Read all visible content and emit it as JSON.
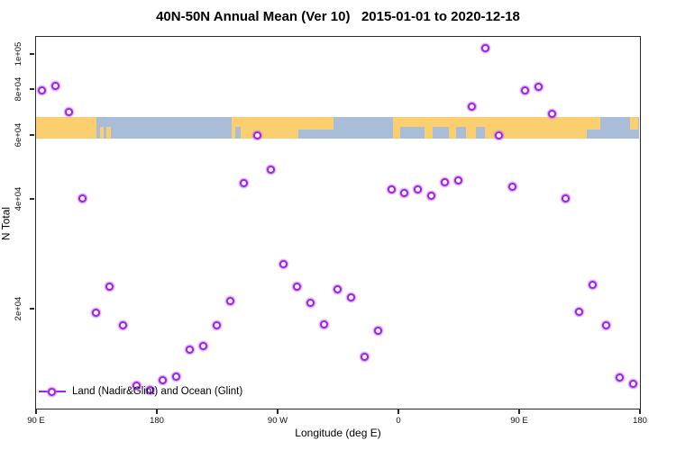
{
  "title": "40N-50N Annual Mean (Ver 10)   2015-01-01 to 2020-12-18",
  "legend": {
    "label": "Land (Nadir&Glint) and Ocean (Glint)"
  },
  "colors": {
    "marker": "#a322ee",
    "marker_halo": "#ba6af5",
    "land": "#fbce6f",
    "ocean": "#a9bdd8",
    "axis": "#2b2b2b"
  },
  "chart_data": {
    "type": "scatter",
    "title": "40N-50N Annual Mean (Ver 10)   2015-01-01 to 2020-12-18",
    "xlabel": "Longitude (deg E)",
    "ylabel": "N Total",
    "y_scale": "log10",
    "ylim_approx": [
      10500,
      115000
    ],
    "grid": false,
    "legend_position": "bottom-left-inside",
    "x_axis": {
      "description": "longitude axis starting at 90E and wrapping eastward 450 degrees",
      "span_deg": 450,
      "tick_deg_from_start": [
        0,
        90,
        180,
        270,
        360,
        450
      ],
      "tick_labels": [
        "90 E",
        "180",
        "90 W",
        "0",
        "90 E",
        "180"
      ]
    },
    "y_axis": {
      "tick_values": [
        20000,
        40000,
        60000,
        80000,
        100000
      ],
      "tick_labels": [
        "2e+04",
        "4e+04",
        "6e+04",
        "8e+04",
        "1e+05"
      ]
    },
    "series": [
      {
        "name": "Land (Nadir&Glint) and Ocean (Glint)",
        "marker": "open-circle",
        "marker_color": "#a322ee",
        "points": [
          {
            "deg": 5,
            "value": 79000
          },
          {
            "deg": 15,
            "value": 81500
          },
          {
            "deg": 25,
            "value": 69000
          },
          {
            "deg": 35,
            "value": 40000
          },
          {
            "deg": 45,
            "value": 19500
          },
          {
            "deg": 55,
            "value": 23000
          },
          {
            "deg": 65,
            "value": 18000
          },
          {
            "deg": 75,
            "value": 12300
          },
          {
            "deg": 85,
            "value": 11900
          },
          {
            "deg": 95,
            "value": 12700
          },
          {
            "deg": 105,
            "value": 13000
          },
          {
            "deg": 115,
            "value": 15400
          },
          {
            "deg": 125,
            "value": 15800
          },
          {
            "deg": 135,
            "value": 18000
          },
          {
            "deg": 145,
            "value": 21000
          },
          {
            "deg": 155,
            "value": 44000
          },
          {
            "deg": 165,
            "value": 59500
          },
          {
            "deg": 175,
            "value": 48000
          },
          {
            "deg": 185,
            "value": 26400
          },
          {
            "deg": 195,
            "value": 23000
          },
          {
            "deg": 205,
            "value": 20700
          },
          {
            "deg": 215,
            "value": 18100
          },
          {
            "deg": 225,
            "value": 22500
          },
          {
            "deg": 235,
            "value": 21400
          },
          {
            "deg": 245,
            "value": 14700
          },
          {
            "deg": 255,
            "value": 17400
          },
          {
            "deg": 265,
            "value": 42400
          },
          {
            "deg": 275,
            "value": 41400
          },
          {
            "deg": 285,
            "value": 42400
          },
          {
            "deg": 295,
            "value": 40700
          },
          {
            "deg": 305,
            "value": 44300
          },
          {
            "deg": 315,
            "value": 44900
          },
          {
            "deg": 325,
            "value": 71500
          },
          {
            "deg": 335,
            "value": 103500
          },
          {
            "deg": 345,
            "value": 59500
          },
          {
            "deg": 355,
            "value": 43000
          },
          {
            "deg": 365,
            "value": 79000
          },
          {
            "deg": 375,
            "value": 81000
          },
          {
            "deg": 385,
            "value": 68500
          },
          {
            "deg": 395,
            "value": 40000
          },
          {
            "deg": 405,
            "value": 19600
          },
          {
            "deg": 415,
            "value": 23200
          },
          {
            "deg": 425,
            "value": 18000
          },
          {
            "deg": 435,
            "value": 12900
          },
          {
            "deg": 445,
            "value": 12400
          }
        ]
      }
    ],
    "map_band": {
      "description": "40N-50N latitude strip of world map drawn across plot",
      "value_top": 66800,
      "value_bottom": 58300,
      "land_color": "#fbce6f",
      "ocean_color": "#a9bdd8",
      "land_segments": [
        {
          "name": "asia-east-of-90e",
          "from_deg": 0,
          "to_deg": 45,
          "part": "full"
        },
        {
          "name": "japan-islands-1",
          "from_deg": 48,
          "to_deg": 51,
          "part": "bottom"
        },
        {
          "name": "japan-islands-2",
          "from_deg": 53,
          "to_deg": 56,
          "part": "bottom"
        },
        {
          "name": "north-america",
          "from_deg": 146,
          "to_deg": 196,
          "part": "full"
        },
        {
          "name": "eastern-canada",
          "from_deg": 196,
          "to_deg": 222,
          "part": "top"
        },
        {
          "name": "europe-asia",
          "from_deg": 266,
          "to_deg": 411,
          "part": "full"
        },
        {
          "name": "sakhalin-hokkaido",
          "from_deg": 411,
          "to_deg": 421,
          "part": "top"
        },
        {
          "name": "kamchatka",
          "from_deg": 443,
          "to_deg": 449,
          "part": "top"
        }
      ],
      "ocean_patches": [
        {
          "name": "puget-notch",
          "from_deg": 149,
          "to_deg": 153,
          "part": "bottom"
        },
        {
          "name": "biscay-west-med",
          "from_deg": 272,
          "to_deg": 290,
          "part": "bottom"
        },
        {
          "name": "mediterranean",
          "from_deg": 296,
          "to_deg": 308,
          "part": "bottom"
        },
        {
          "name": "black-sea",
          "from_deg": 313,
          "to_deg": 321,
          "part": "bottom"
        },
        {
          "name": "caspian-sea",
          "from_deg": 328,
          "to_deg": 335,
          "part": "bottom"
        }
      ]
    }
  }
}
